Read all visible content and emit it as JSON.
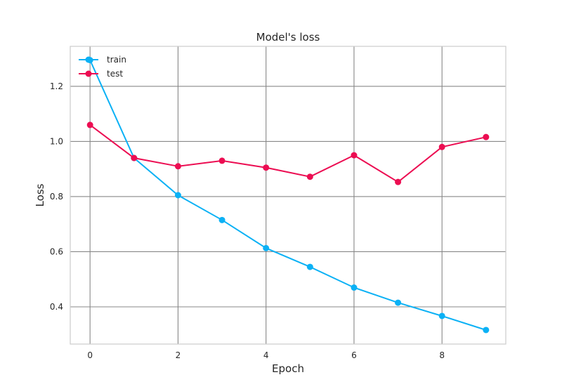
{
  "chart_data": {
    "type": "line",
    "title": "Model's loss",
    "xlabel": "Epoch",
    "ylabel": "Loss",
    "xlim": [
      -0.45,
      9.45
    ],
    "ylim": [
      0.265,
      1.345
    ],
    "xticks": [
      0,
      2,
      4,
      6,
      8
    ],
    "yticks": [
      0.4,
      0.6,
      0.8,
      1.0,
      1.2
    ],
    "grid": true,
    "legend_position": "top-left",
    "x": [
      0,
      1,
      2,
      3,
      4,
      5,
      6,
      7,
      8,
      9
    ],
    "series": [
      {
        "name": "train",
        "color": "#0BB1F5",
        "values": [
          1.295,
          0.94,
          0.805,
          0.715,
          0.613,
          0.545,
          0.47,
          0.415,
          0.367,
          0.316
        ]
      },
      {
        "name": "test",
        "color": "#EC0D52",
        "values": [
          1.06,
          0.94,
          0.91,
          0.93,
          0.905,
          0.872,
          0.95,
          0.853,
          0.98,
          1.016
        ]
      }
    ]
  }
}
